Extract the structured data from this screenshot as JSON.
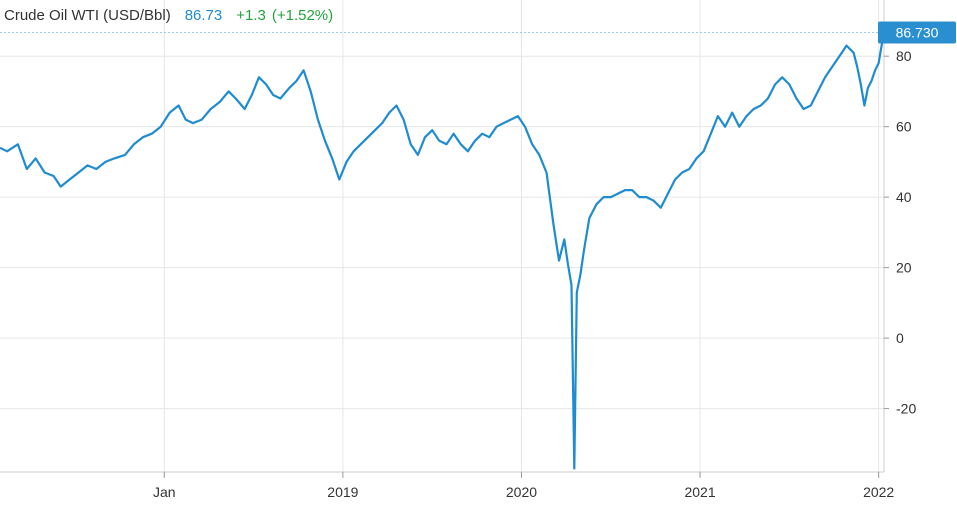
{
  "chart_data": {
    "type": "line",
    "title": "Crude Oil WTI (USD/Bbl)",
    "last_value": "86.73",
    "change": "+1.3",
    "change_pct": "(+1.52%)",
    "price_badge": "86.730",
    "ylim": [
      -38,
      88
    ],
    "y_ticks": [
      80,
      60,
      40,
      20,
      0,
      -20
    ],
    "y_tick_labels": [
      "80",
      "60",
      "40",
      "20",
      "0",
      "-20"
    ],
    "x_tick_labels": [
      "Jan",
      "2019",
      "2020",
      "2021",
      "2022"
    ],
    "x_tick_positions": [
      2018.0,
      2019.0,
      2020.0,
      2021.0,
      2022.0
    ],
    "xlim": [
      2017.08,
      2022.03
    ],
    "grid": true,
    "colors": {
      "line": "#1f8bd0",
      "badge": "#2a8fd0",
      "change": "#22a33b",
      "grid": "#e6e6e6",
      "ref_line": "#9ccbea"
    },
    "series": [
      {
        "points": [
          [
            2017.08,
            54
          ],
          [
            2017.12,
            53
          ],
          [
            2017.18,
            55
          ],
          [
            2017.23,
            48
          ],
          [
            2017.28,
            51
          ],
          [
            2017.33,
            47
          ],
          [
            2017.38,
            46
          ],
          [
            2017.42,
            43
          ],
          [
            2017.47,
            45
          ],
          [
            2017.52,
            47
          ],
          [
            2017.57,
            49
          ],
          [
            2017.62,
            48
          ],
          [
            2017.67,
            50
          ],
          [
            2017.72,
            51
          ],
          [
            2017.78,
            52
          ],
          [
            2017.83,
            55
          ],
          [
            2017.88,
            57
          ],
          [
            2017.93,
            58
          ],
          [
            2017.98,
            60
          ],
          [
            2018.03,
            64
          ],
          [
            2018.08,
            66
          ],
          [
            2018.12,
            62
          ],
          [
            2018.16,
            61
          ],
          [
            2018.21,
            62
          ],
          [
            2018.26,
            65
          ],
          [
            2018.31,
            67
          ],
          [
            2018.36,
            70
          ],
          [
            2018.4,
            68
          ],
          [
            2018.45,
            65
          ],
          [
            2018.49,
            69
          ],
          [
            2018.53,
            74
          ],
          [
            2018.57,
            72
          ],
          [
            2018.61,
            69
          ],
          [
            2018.65,
            68
          ],
          [
            2018.7,
            71
          ],
          [
            2018.74,
            73
          ],
          [
            2018.78,
            76
          ],
          [
            2018.82,
            70
          ],
          [
            2018.86,
            62
          ],
          [
            2018.9,
            56
          ],
          [
            2018.94,
            51
          ],
          [
            2018.98,
            45
          ],
          [
            2019.02,
            50
          ],
          [
            2019.06,
            53
          ],
          [
            2019.1,
            55
          ],
          [
            2019.14,
            57
          ],
          [
            2019.18,
            59
          ],
          [
            2019.22,
            61
          ],
          [
            2019.26,
            64
          ],
          [
            2019.3,
            66
          ],
          [
            2019.34,
            62
          ],
          [
            2019.38,
            55
          ],
          [
            2019.42,
            52
          ],
          [
            2019.46,
            57
          ],
          [
            2019.5,
            59
          ],
          [
            2019.54,
            56
          ],
          [
            2019.58,
            55
          ],
          [
            2019.62,
            58
          ],
          [
            2019.66,
            55
          ],
          [
            2019.7,
            53
          ],
          [
            2019.74,
            56
          ],
          [
            2019.78,
            58
          ],
          [
            2019.82,
            57
          ],
          [
            2019.86,
            60
          ],
          [
            2019.9,
            61
          ],
          [
            2019.94,
            62
          ],
          [
            2019.98,
            63
          ],
          [
            2020.02,
            60
          ],
          [
            2020.06,
            55
          ],
          [
            2020.1,
            52
          ],
          [
            2020.14,
            47
          ],
          [
            2020.18,
            32
          ],
          [
            2020.21,
            22
          ],
          [
            2020.24,
            28
          ],
          [
            2020.26,
            21
          ],
          [
            2020.28,
            15
          ],
          [
            2020.296,
            -37
          ],
          [
            2020.31,
            13
          ],
          [
            2020.33,
            18
          ],
          [
            2020.35,
            25
          ],
          [
            2020.38,
            34
          ],
          [
            2020.42,
            38
          ],
          [
            2020.46,
            40
          ],
          [
            2020.5,
            40
          ],
          [
            2020.54,
            41
          ],
          [
            2020.58,
            42
          ],
          [
            2020.62,
            42
          ],
          [
            2020.66,
            40
          ],
          [
            2020.7,
            40
          ],
          [
            2020.74,
            39
          ],
          [
            2020.78,
            37
          ],
          [
            2020.82,
            41
          ],
          [
            2020.86,
            45
          ],
          [
            2020.9,
            47
          ],
          [
            2020.94,
            48
          ],
          [
            2020.98,
            51
          ],
          [
            2021.02,
            53
          ],
          [
            2021.06,
            58
          ],
          [
            2021.1,
            63
          ],
          [
            2021.14,
            60
          ],
          [
            2021.18,
            64
          ],
          [
            2021.22,
            60
          ],
          [
            2021.26,
            63
          ],
          [
            2021.3,
            65
          ],
          [
            2021.34,
            66
          ],
          [
            2021.38,
            68
          ],
          [
            2021.42,
            72
          ],
          [
            2021.46,
            74
          ],
          [
            2021.5,
            72
          ],
          [
            2021.54,
            68
          ],
          [
            2021.58,
            65
          ],
          [
            2021.62,
            66
          ],
          [
            2021.66,
            70
          ],
          [
            2021.7,
            74
          ],
          [
            2021.74,
            77
          ],
          [
            2021.78,
            80
          ],
          [
            2021.82,
            83
          ],
          [
            2021.86,
            81
          ],
          [
            2021.88,
            77
          ],
          [
            2021.9,
            72
          ],
          [
            2021.92,
            66
          ],
          [
            2021.94,
            71
          ],
          [
            2021.96,
            73
          ],
          [
            2021.98,
            76
          ],
          [
            2022.0,
            78
          ],
          [
            2022.02,
            84
          ],
          [
            2022.03,
            86.73
          ]
        ]
      }
    ]
  }
}
